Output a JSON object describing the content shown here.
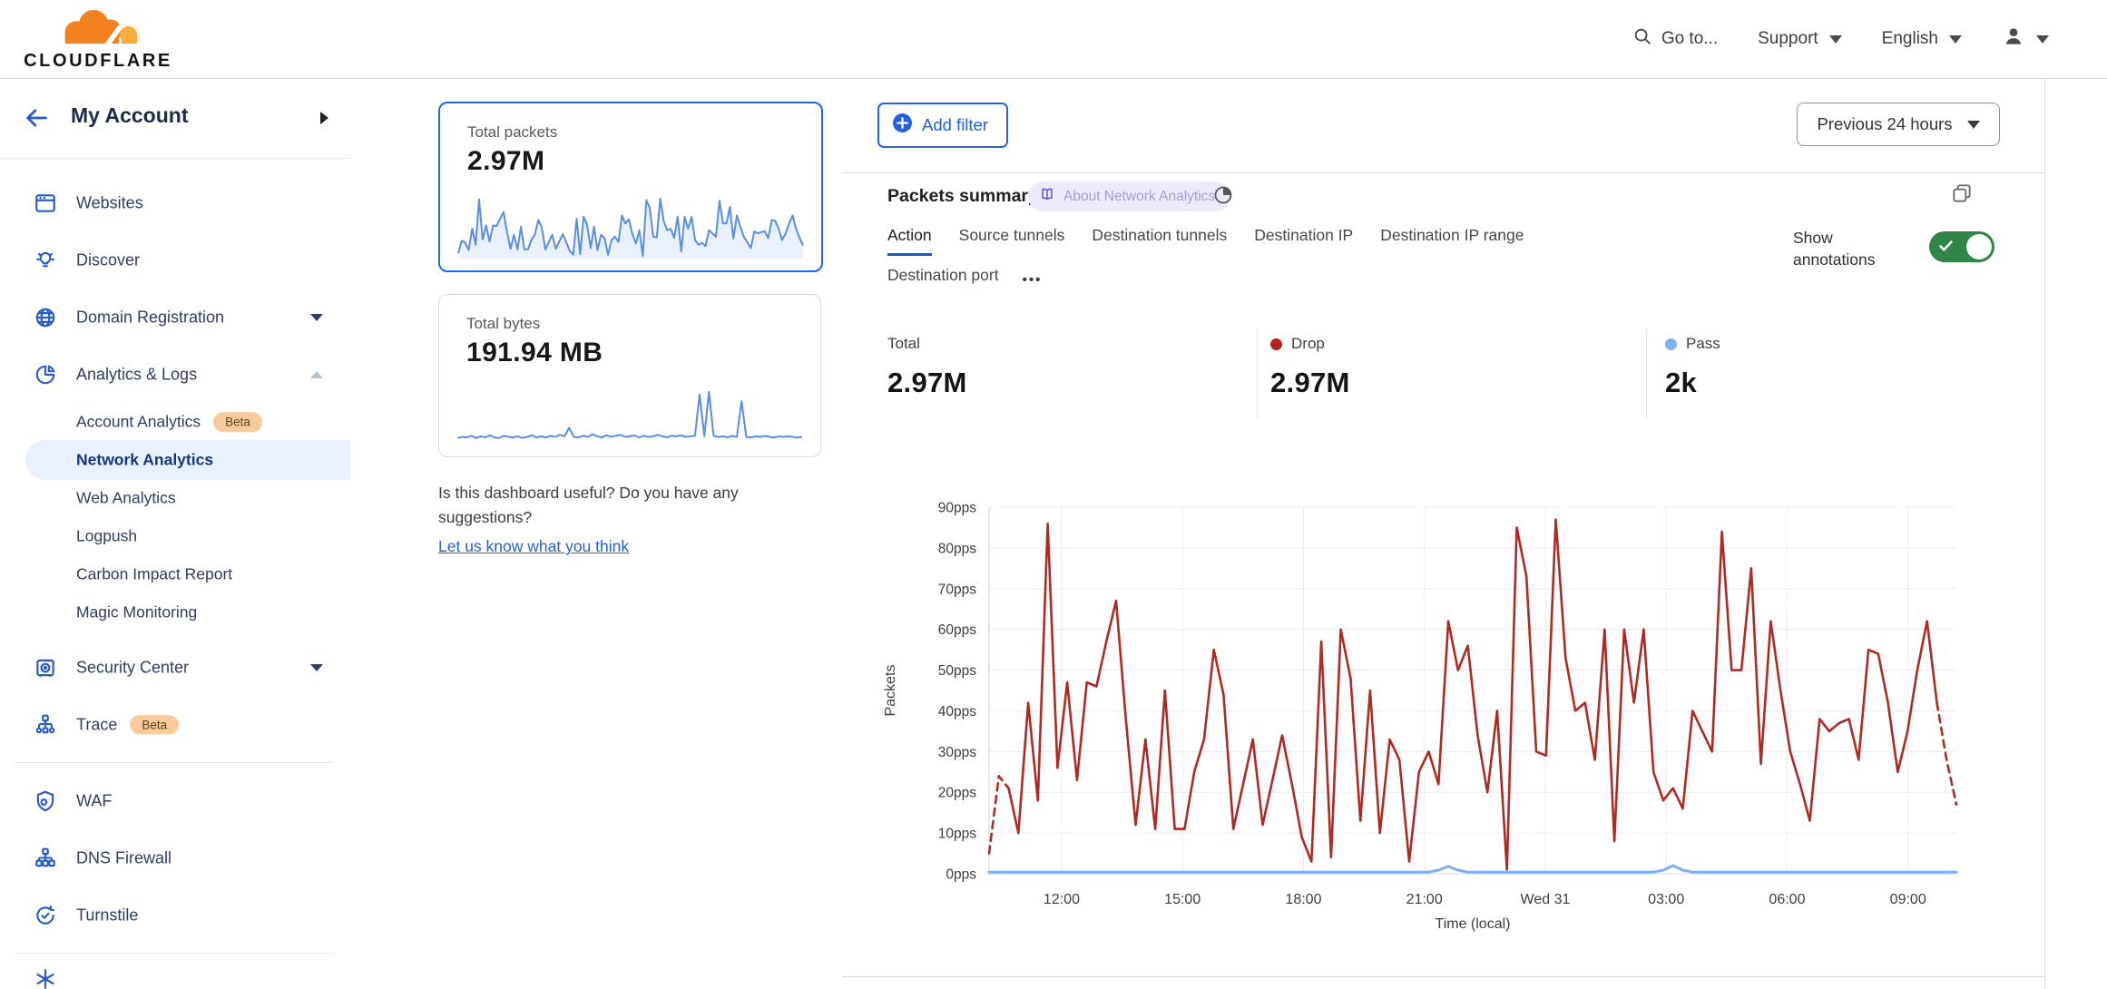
{
  "header": {
    "logo_text": "CLOUDFLARE",
    "goto_label": "Go to...",
    "support_label": "Support",
    "language_label": "English"
  },
  "sidebar": {
    "account_label": "My Account",
    "beta_label": "Beta",
    "items": [
      {
        "label": "Websites"
      },
      {
        "label": "Discover"
      },
      {
        "label": "Domain Registration"
      },
      {
        "label": "Analytics & Logs"
      },
      {
        "label": "Security Center"
      },
      {
        "label": "Trace"
      },
      {
        "label": "WAF"
      },
      {
        "label": "DNS Firewall"
      },
      {
        "label": "Turnstile"
      }
    ],
    "analytics_children": [
      {
        "label": "Account Analytics",
        "beta": true
      },
      {
        "label": "Network Analytics",
        "selected": true
      },
      {
        "label": "Web Analytics"
      },
      {
        "label": "Logpush"
      },
      {
        "label": "Carbon Impact Report"
      },
      {
        "label": "Magic Monitoring"
      }
    ]
  },
  "summary_cards": {
    "packets": {
      "title": "Total packets",
      "value": "2.97M"
    },
    "bytes": {
      "title": "Total bytes",
      "value": "191.94 MB"
    }
  },
  "feedback": {
    "question": "Is this dashboard useful? Do you have any suggestions?",
    "link_label": "Let us know what you think"
  },
  "toolbar": {
    "add_filter_label": "Add filter",
    "time_range_label": "Previous 24 hours"
  },
  "panel": {
    "title": "Packets summary",
    "about_badge_label": "About Network Analytics",
    "tabs": [
      "Action",
      "Source tunnels",
      "Destination tunnels",
      "Destination IP",
      "Destination IP range",
      "Destination port"
    ],
    "active_tab": "Action",
    "more_tabs_label": "•••",
    "show_annotations_label": "Show annotations",
    "annotations_on": true,
    "stats": [
      {
        "label": "Total",
        "value": "2.97M"
      },
      {
        "label": "Drop",
        "value": "2.97M",
        "dot_color": "#b42420"
      },
      {
        "label": "Pass",
        "value": "2k",
        "dot_color": "#7fb0f2"
      }
    ]
  },
  "colors": {
    "accent_blue": "#2160df",
    "drop_red": "#b02a23",
    "pass_blue": "#7fb0f2",
    "toggle_green": "#2f8549",
    "sparkline_blue": "#5b8de6"
  },
  "chart_data": [
    {
      "name": "total-packets-sparkline",
      "type": "line",
      "title": "Total packets",
      "values": [
        5,
        24,
        21,
        10,
        42,
        18,
        86,
        26,
        47,
        23,
        47,
        46,
        57,
        67,
        38,
        12,
        33,
        11,
        45,
        11,
        11,
        25,
        33,
        55,
        44,
        11,
        22,
        33,
        12,
        23,
        34,
        22,
        9,
        3,
        57,
        4,
        60,
        48,
        13,
        45,
        10,
        33,
        28,
        3,
        25,
        30,
        22,
        62,
        50,
        56,
        34,
        20,
        40,
        1,
        85,
        73,
        30,
        29,
        87,
        53,
        40,
        42,
        28,
        60,
        8,
        60,
        42,
        60,
        25,
        18,
        21,
        16,
        40,
        35,
        30,
        84,
        50,
        50,
        75,
        27,
        62,
        45,
        30,
        22,
        13,
        38,
        35,
        37,
        38,
        28,
        55,
        54,
        42,
        25,
        35,
        50,
        62,
        42,
        28,
        17
      ]
    },
    {
      "name": "total-bytes-sparkline",
      "type": "line",
      "title": "Total bytes",
      "values": [
        9,
        11,
        10,
        13,
        9,
        12,
        10,
        14,
        10,
        9,
        13,
        11,
        10,
        12,
        9,
        11,
        14,
        10,
        12,
        10,
        13,
        11,
        15,
        12,
        28,
        11,
        10,
        13,
        11,
        16,
        12,
        10,
        14,
        11,
        13,
        15,
        11,
        12,
        14,
        10,
        13,
        11,
        12,
        15,
        12,
        10,
        13,
        12,
        14,
        11,
        12,
        13,
        90,
        12,
        95,
        13,
        11,
        12,
        10,
        13,
        11,
        78,
        11,
        10,
        12,
        11,
        13,
        11,
        10,
        12,
        11,
        12,
        11,
        10,
        11
      ]
    },
    {
      "name": "packets-summary-chart",
      "type": "line",
      "title": "Packets summary",
      "xlabel": "Time (local)",
      "ylabel": "Packets",
      "ylim": [
        0,
        90
      ],
      "grid": true,
      "legend_position": "none",
      "yticks": [
        {
          "label": "0pps",
          "value": 0
        },
        {
          "label": "10pps",
          "value": 10
        },
        {
          "label": "20pps",
          "value": 20
        },
        {
          "label": "30pps",
          "value": 30
        },
        {
          "label": "40pps",
          "value": 40
        },
        {
          "label": "50pps",
          "value": 50
        },
        {
          "label": "60pps",
          "value": 60
        },
        {
          "label": "70pps",
          "value": 70
        },
        {
          "label": "80pps",
          "value": 80
        },
        {
          "label": "90pps",
          "value": 90
        }
      ],
      "xticks": [
        {
          "label": "12:00",
          "f": 0.075
        },
        {
          "label": "15:00",
          "f": 0.2
        },
        {
          "label": "18:00",
          "f": 0.325
        },
        {
          "label": "21:00",
          "f": 0.45
        },
        {
          "label": "Wed 31",
          "f": 0.575
        },
        {
          "label": "03:00",
          "f": 0.7
        },
        {
          "label": "06:00",
          "f": 0.825
        },
        {
          "label": "09:00",
          "f": 0.95
        }
      ],
      "series": [
        {
          "name": "Drop",
          "color": "#b02a23",
          "dashed_head": 2,
          "dashed_tail": 2,
          "values": [
            5,
            24,
            21,
            10,
            42,
            18,
            86,
            26,
            47,
            23,
            47,
            46,
            57,
            67,
            38,
            12,
            33,
            11,
            45,
            11,
            11,
            25,
            33,
            55,
            44,
            11,
            22,
            33,
            12,
            23,
            34,
            22,
            9,
            3,
            57,
            4,
            60,
            48,
            13,
            45,
            10,
            33,
            28,
            3,
            25,
            30,
            22,
            62,
            50,
            56,
            34,
            20,
            40,
            1,
            85,
            73,
            30,
            29,
            87,
            53,
            40,
            42,
            28,
            60,
            8,
            60,
            42,
            60,
            25,
            18,
            21,
            16,
            40,
            35,
            30,
            84,
            50,
            50,
            75,
            27,
            62,
            45,
            30,
            22,
            13,
            38,
            35,
            37,
            38,
            28,
            55,
            54,
            42,
            25,
            35,
            50,
            62,
            42,
            28,
            17
          ]
        },
        {
          "name": "Pass",
          "color": "#7fb0f2",
          "values": [
            0.4,
            0.4,
            0.4,
            0.4,
            0.4,
            0.4,
            0.4,
            0.4,
            0.4,
            0.4,
            0.4,
            0.4,
            0.4,
            0.4,
            0.4,
            0.4,
            0.4,
            0.4,
            0.4,
            0.4,
            0.4,
            0.4,
            0.4,
            0.4,
            0.4,
            0.4,
            0.4,
            0.4,
            0.4,
            0.4,
            0.4,
            0.4,
            0.4,
            0.4,
            0.4,
            0.4,
            0.4,
            0.4,
            0.4,
            0.4,
            0.4,
            0.4,
            0.4,
            0.4,
            0.4,
            0.4,
            0.9,
            1.8,
            0.9,
            0.4,
            0.4,
            0.4,
            0.4,
            0.4,
            0.4,
            0.4,
            0.4,
            0.4,
            0.4,
            0.4,
            0.4,
            0.4,
            0.4,
            0.4,
            0.4,
            0.4,
            0.4,
            0.4,
            0.4,
            0.9,
            2,
            0.9,
            0.4,
            0.4,
            0.4,
            0.4,
            0.4,
            0.4,
            0.4,
            0.4,
            0.4,
            0.4,
            0.4,
            0.4,
            0.4,
            0.4,
            0.4,
            0.4,
            0.4,
            0.4,
            0.4,
            0.4,
            0.4,
            0.4,
            0.4,
            0.4,
            0.4,
            0.4,
            0.4,
            0.4
          ]
        }
      ]
    }
  ]
}
